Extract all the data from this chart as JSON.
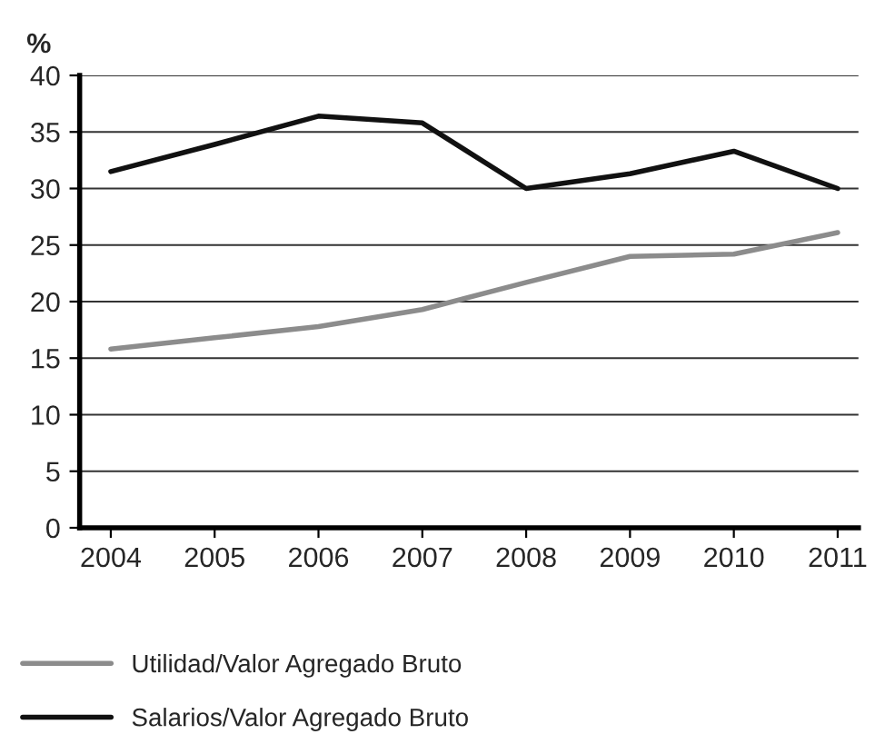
{
  "chart_data": {
    "type": "line",
    "ylabel": "%",
    "categories": [
      "2004",
      "2005",
      "2006",
      "2007",
      "2008",
      "2009",
      "2010",
      "2011"
    ],
    "series": [
      {
        "name": "Utilidad/Valor Agregado Bruto",
        "color": "#8c8c8c",
        "values": [
          15.8,
          16.8,
          17.8,
          19.3,
          21.7,
          24.0,
          24.2,
          26.1
        ]
      },
      {
        "name": "Salarios/Valor Agregado Bruto",
        "color": "#111111",
        "values": [
          31.5,
          33.9,
          36.4,
          35.8,
          30.0,
          31.3,
          33.3,
          30.0
        ]
      }
    ],
    "ylim": [
      0,
      40
    ],
    "yticks": [
      0,
      5,
      10,
      15,
      20,
      25,
      30,
      35,
      40
    ],
    "grid": "y",
    "legend": "bottom",
    "marker": "none",
    "line_style": "solid"
  }
}
